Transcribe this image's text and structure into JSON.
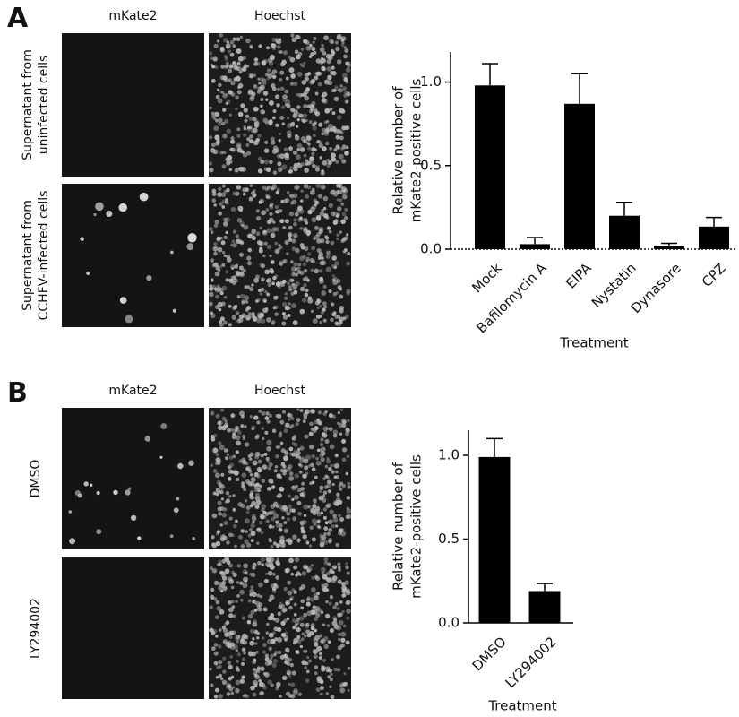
{
  "panels": [
    {
      "label": "A",
      "columns": [
        "mKate2",
        "Hoechst"
      ],
      "rows": [
        [
          "Supernatant from",
          "uninfected cells"
        ],
        [
          "Supernatant from",
          "CCHFV-infected cells"
        ]
      ]
    },
    {
      "label": "B",
      "columns": [
        "mKate2",
        "Hoechst"
      ],
      "rows": [
        [
          "DMSO"
        ],
        [
          "LY294002"
        ]
      ]
    }
  ],
  "chart_data": [
    {
      "type": "bar",
      "y_label": [
        "Relative number of",
        "mKate2-positive cells"
      ],
      "x_label": "Treatment",
      "categories": [
        "Mock",
        "Bafilomycin A",
        "EIPA",
        "Nystatin",
        "Dynasore",
        "CPZ"
      ],
      "values": [
        0.98,
        0.03,
        0.87,
        0.2,
        0.02,
        0.135
      ],
      "errors": [
        0.13,
        0.04,
        0.18,
        0.08,
        0.015,
        0.055
      ],
      "color": "#000000",
      "ylim": [
        0,
        1.18
      ],
      "yticks": [
        {
          "value": 0,
          "label": "0.0"
        },
        {
          "value": 0.5,
          "label": "0.5"
        },
        {
          "value": 1,
          "label": "1.0"
        }
      ]
    },
    {
      "type": "bar",
      "y_label": [
        "Relative number of",
        "mKate2-positive cells"
      ],
      "x_label": "Treatment",
      "categories": [
        "DMSO",
        "LY294002"
      ],
      "values": [
        0.99,
        0.19
      ],
      "errors": [
        0.11,
        0.045
      ],
      "color": "#000000",
      "ylim": [
        0,
        1.15
      ],
      "yticks": [
        {
          "value": 0,
          "label": "0.0"
        },
        {
          "value": 0.5,
          "label": "0.5"
        },
        {
          "value": 1,
          "label": "1.0"
        }
      ]
    }
  ]
}
